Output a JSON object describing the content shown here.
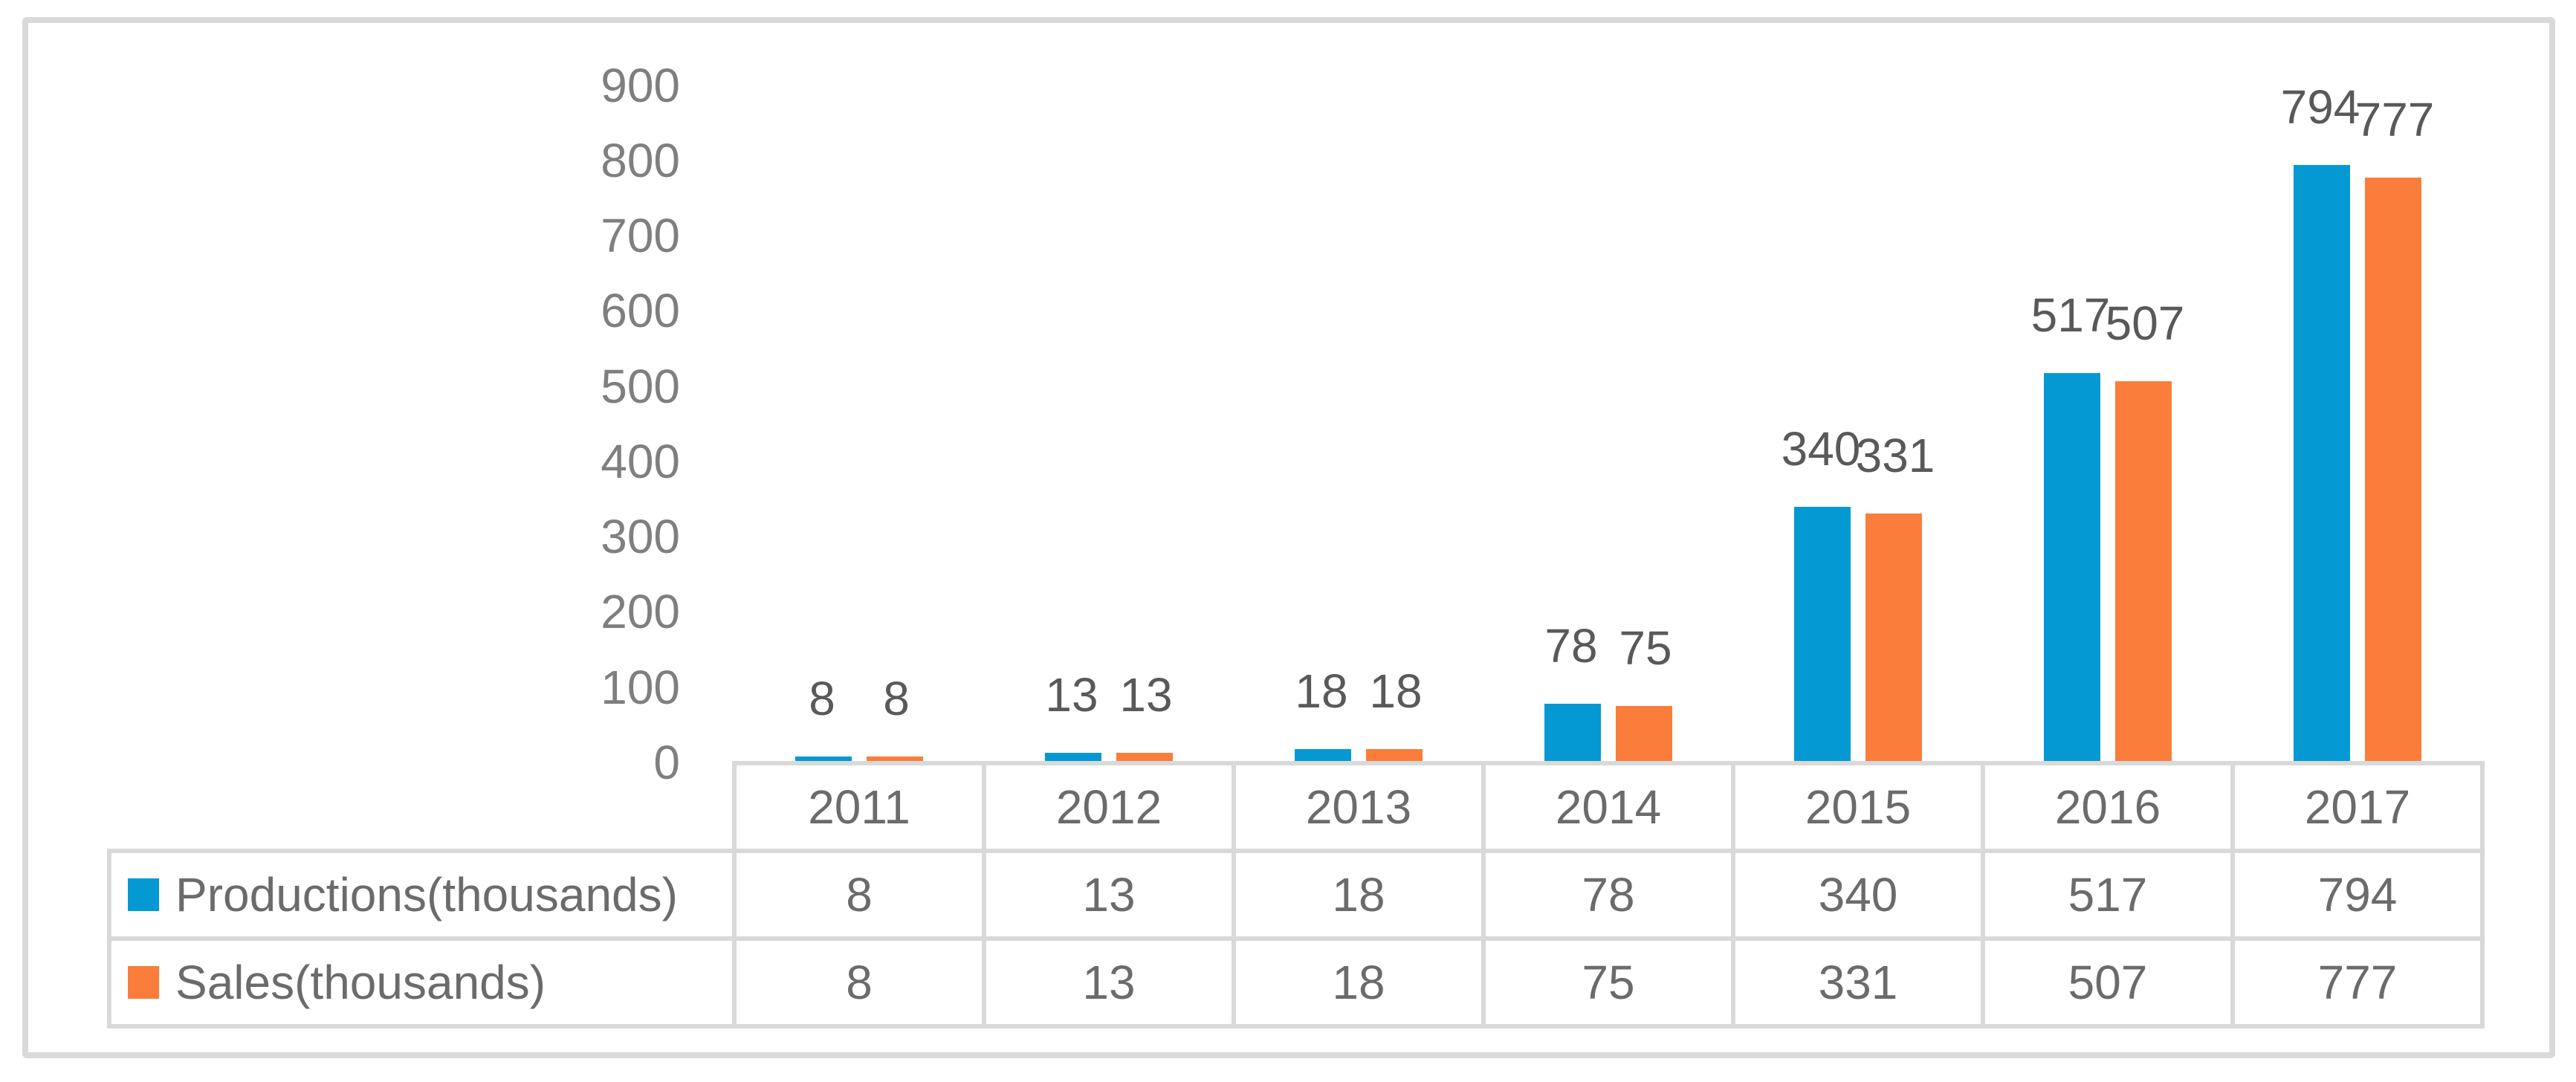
{
  "chart_data": {
    "type": "bar",
    "title": "",
    "categories": [
      "2011",
      "2012",
      "2013",
      "2014",
      "2015",
      "2016",
      "2017"
    ],
    "series": [
      {
        "name": "Productions(thousands)",
        "color": "#0599d4",
        "values": [
          8,
          13,
          18,
          78,
          340,
          517,
          794
        ]
      },
      {
        "name": "Sales(thousands)",
        "color": "#fb7d3b",
        "values": [
          8,
          13,
          18,
          75,
          331,
          507,
          777
        ]
      }
    ],
    "y_axis": {
      "min": 0,
      "max": 900,
      "step": 100,
      "tick_labels": [
        "0",
        "100",
        "200",
        "300",
        "400",
        "500",
        "600",
        "700",
        "800",
        "900"
      ]
    },
    "gridlines": false,
    "data_labels_position": "outside-end",
    "legend_position": "left-of-data-table",
    "has_data_table": true
  },
  "colors": {
    "frame_border": "#d9d9d9",
    "table_border": "#d9d9d9",
    "tick_text": "#7f7f7f",
    "data_label_text": "#595959",
    "table_text": "#6b6b6b",
    "background": "#ffffff"
  }
}
